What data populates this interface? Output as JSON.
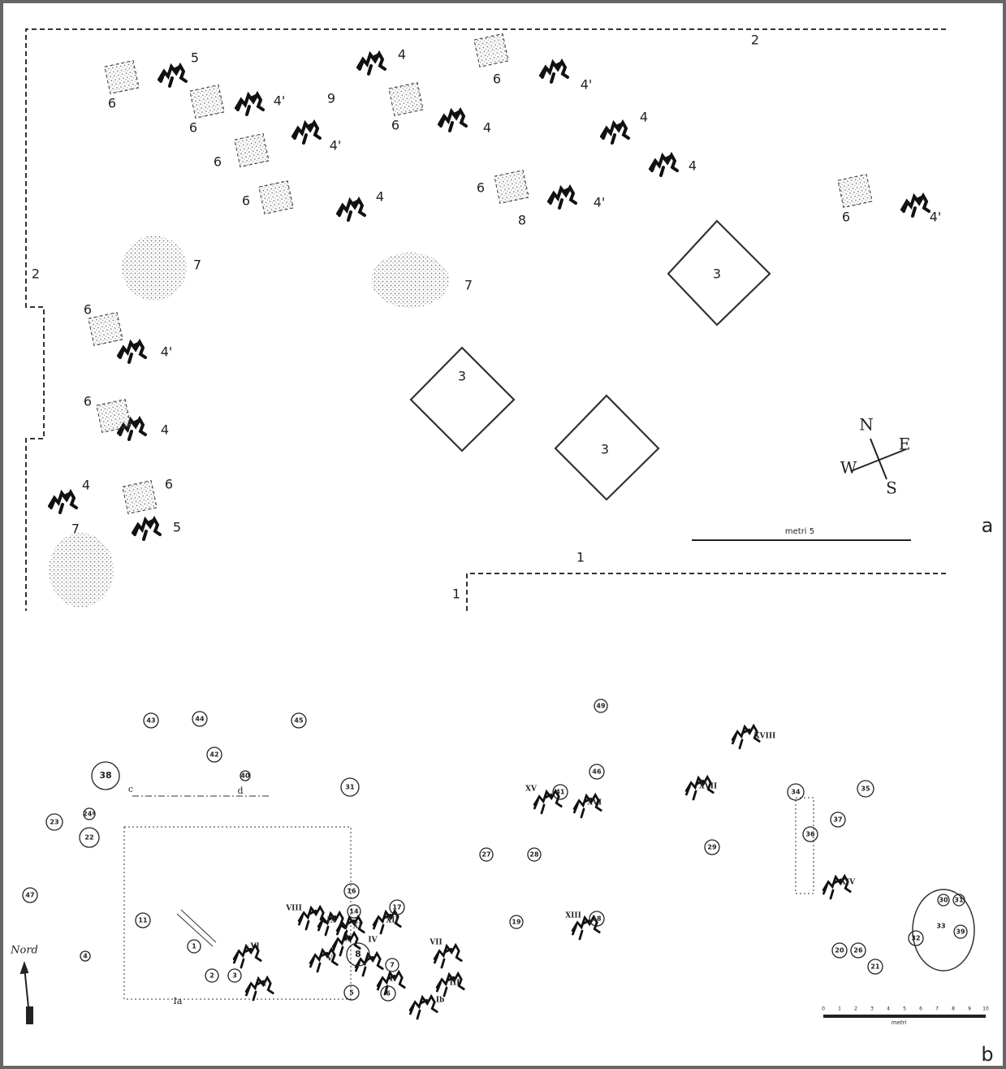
{
  "panel_a": {
    "letter": "a",
    "labels": [
      "2",
      "5",
      "4",
      "6",
      "4'",
      "6",
      "6",
      "4'",
      "9",
      "4'",
      "6",
      "4",
      "4",
      "6",
      "4",
      "6",
      "4",
      "6",
      "4'",
      "8",
      "6",
      "4'",
      "2",
      "7",
      "7",
      "3",
      "6",
      "4'",
      "3",
      "6",
      "4",
      "3",
      "4",
      "6",
      "5",
      "7",
      "1",
      "1"
    ],
    "scale_label": "metri 5",
    "compass": [
      "N",
      "E",
      "W",
      "S"
    ]
  },
  "panel_b": {
    "letter": "b",
    "circled": [
      "43",
      "44",
      "45",
      "49",
      "42",
      "40",
      "38",
      "31",
      "46",
      "41",
      "34",
      "35",
      "24ª",
      "22",
      "23",
      "37",
      "36",
      "27",
      "28",
      "29",
      "47",
      "16",
      "14",
      "17",
      "11",
      "19",
      "18",
      "8",
      "7",
      "1",
      "2",
      "3",
      "4",
      "5",
      "6",
      "32",
      "33",
      "39",
      "30",
      "31",
      "20",
      "26",
      "21"
    ],
    "roman": [
      "XVIII",
      "XVII",
      "XV",
      "XVI",
      "XIV",
      "VIII",
      "IX",
      "XI",
      "XII",
      "XIII",
      "X",
      "IV",
      "VII",
      "VI",
      "V",
      "II",
      "III",
      "I",
      "Ib"
    ],
    "letters": [
      "c",
      "d",
      "Ia"
    ],
    "north": "Nord",
    "scale_ticks": [
      "0",
      "1",
      "2",
      "3",
      "4",
      "5",
      "6",
      "7",
      "8",
      "9",
      "10"
    ],
    "scale_unit": "metri"
  }
}
